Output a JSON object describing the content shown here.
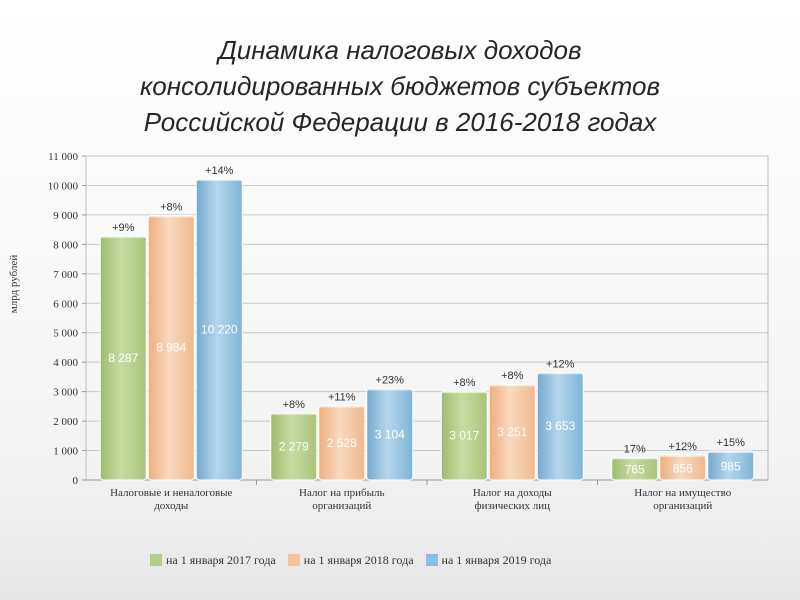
{
  "page": {
    "title_lines": [
      "Динамика налоговых доходов",
      "консолидированных бюджетов субъектов",
      "Российской Федерации в 2016-2018 годах"
    ]
  },
  "chart_data": {
    "type": "bar",
    "title": "Динамика налоговых доходов консолидированных бюджетов субъектов Российской Федерации в 2016-2018 годах",
    "ylabel": "млрд рублей",
    "xlabel": "",
    "ylim": [
      0,
      11000
    ],
    "yticks": [
      0,
      1000,
      2000,
      3000,
      4000,
      5000,
      6000,
      7000,
      8000,
      9000,
      10000,
      11000
    ],
    "ytick_labels": [
      "0",
      "1 000",
      "2 000",
      "3 000",
      "4 000",
      "5 000",
      "6 000",
      "7 000",
      "8 000",
      "9 000",
      "10 000",
      "11 000"
    ],
    "grid": true,
    "legend_position": "bottom",
    "categories": [
      [
        "Налоговые и неналоговые",
        "доходы"
      ],
      [
        "Налог на прибыль",
        "организаций"
      ],
      [
        "Налог на доходы",
        "физических лиц"
      ],
      [
        "Налог на имущество",
        "организаций"
      ]
    ],
    "series": [
      {
        "name": "на 1 января 2017 года",
        "color": "#b4cc8a",
        "values": [
          8287,
          2279,
          3017,
          765
        ],
        "value_labels": [
          "8 287",
          "2 279",
          "3 017",
          "765"
        ],
        "change_labels": [
          "+9%",
          "+8%",
          "+8%",
          "17%"
        ]
      },
      {
        "name": "на 1 января 2018 года",
        "color": "#f2c39c",
        "values": [
          8984,
          2528,
          3251,
          856
        ],
        "value_labels": [
          "8 984",
          "2 528",
          "3 251",
          "856"
        ],
        "change_labels": [
          "+8%",
          "+11%",
          "+8%",
          "+12%"
        ]
      },
      {
        "name": "на 1 января 2019 года",
        "color": "#90bfdb",
        "values": [
          10220,
          3104,
          3653,
          985
        ],
        "value_labels": [
          "10 220",
          "3 104",
          "3 653",
          "985"
        ],
        "change_labels": [
          "+14%",
          "+23%",
          "+12%",
          "+15%"
        ]
      }
    ]
  }
}
